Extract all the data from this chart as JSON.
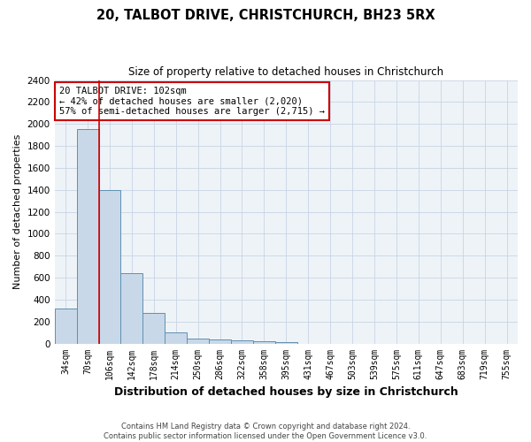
{
  "title": "20, TALBOT DRIVE, CHRISTCHURCH, BH23 5RX",
  "subtitle": "Size of property relative to detached houses in Christchurch",
  "xlabel": "Distribution of detached houses by size in Christchurch",
  "ylabel": "Number of detached properties",
  "bar_labels": [
    "34sqm",
    "70sqm",
    "106sqm",
    "142sqm",
    "178sqm",
    "214sqm",
    "250sqm",
    "286sqm",
    "322sqm",
    "358sqm",
    "395sqm",
    "431sqm",
    "467sqm",
    "503sqm",
    "539sqm",
    "575sqm",
    "611sqm",
    "647sqm",
    "683sqm",
    "719sqm",
    "755sqm"
  ],
  "bar_values": [
    320,
    1950,
    1400,
    640,
    275,
    105,
    45,
    35,
    25,
    18,
    12,
    0,
    0,
    0,
    0,
    0,
    0,
    0,
    0,
    0,
    0
  ],
  "bar_color": "#c8d8e8",
  "bar_edgecolor": "#6090b0",
  "bar_linewidth": 0.7,
  "vline_x": 1.5,
  "vline_color": "#cc0000",
  "vline_linewidth": 1.2,
  "annotation_lines": [
    "20 TALBOT DRIVE: 102sqm",
    "← 42% of detached houses are smaller (2,020)",
    "57% of semi-detached houses are larger (2,715) →"
  ],
  "annotation_box_color": "#ffffff",
  "annotation_box_edgecolor": "#cc0000",
  "ylim": [
    0,
    2400
  ],
  "yticks": [
    0,
    200,
    400,
    600,
    800,
    1000,
    1200,
    1400,
    1600,
    1800,
    2000,
    2200,
    2400
  ],
  "grid_color": "#c8d4e4",
  "background_color": "#eef3f8",
  "footer_line1": "Contains HM Land Registry data © Crown copyright and database right 2024.",
  "footer_line2": "Contains public sector information licensed under the Open Government Licence v3.0."
}
